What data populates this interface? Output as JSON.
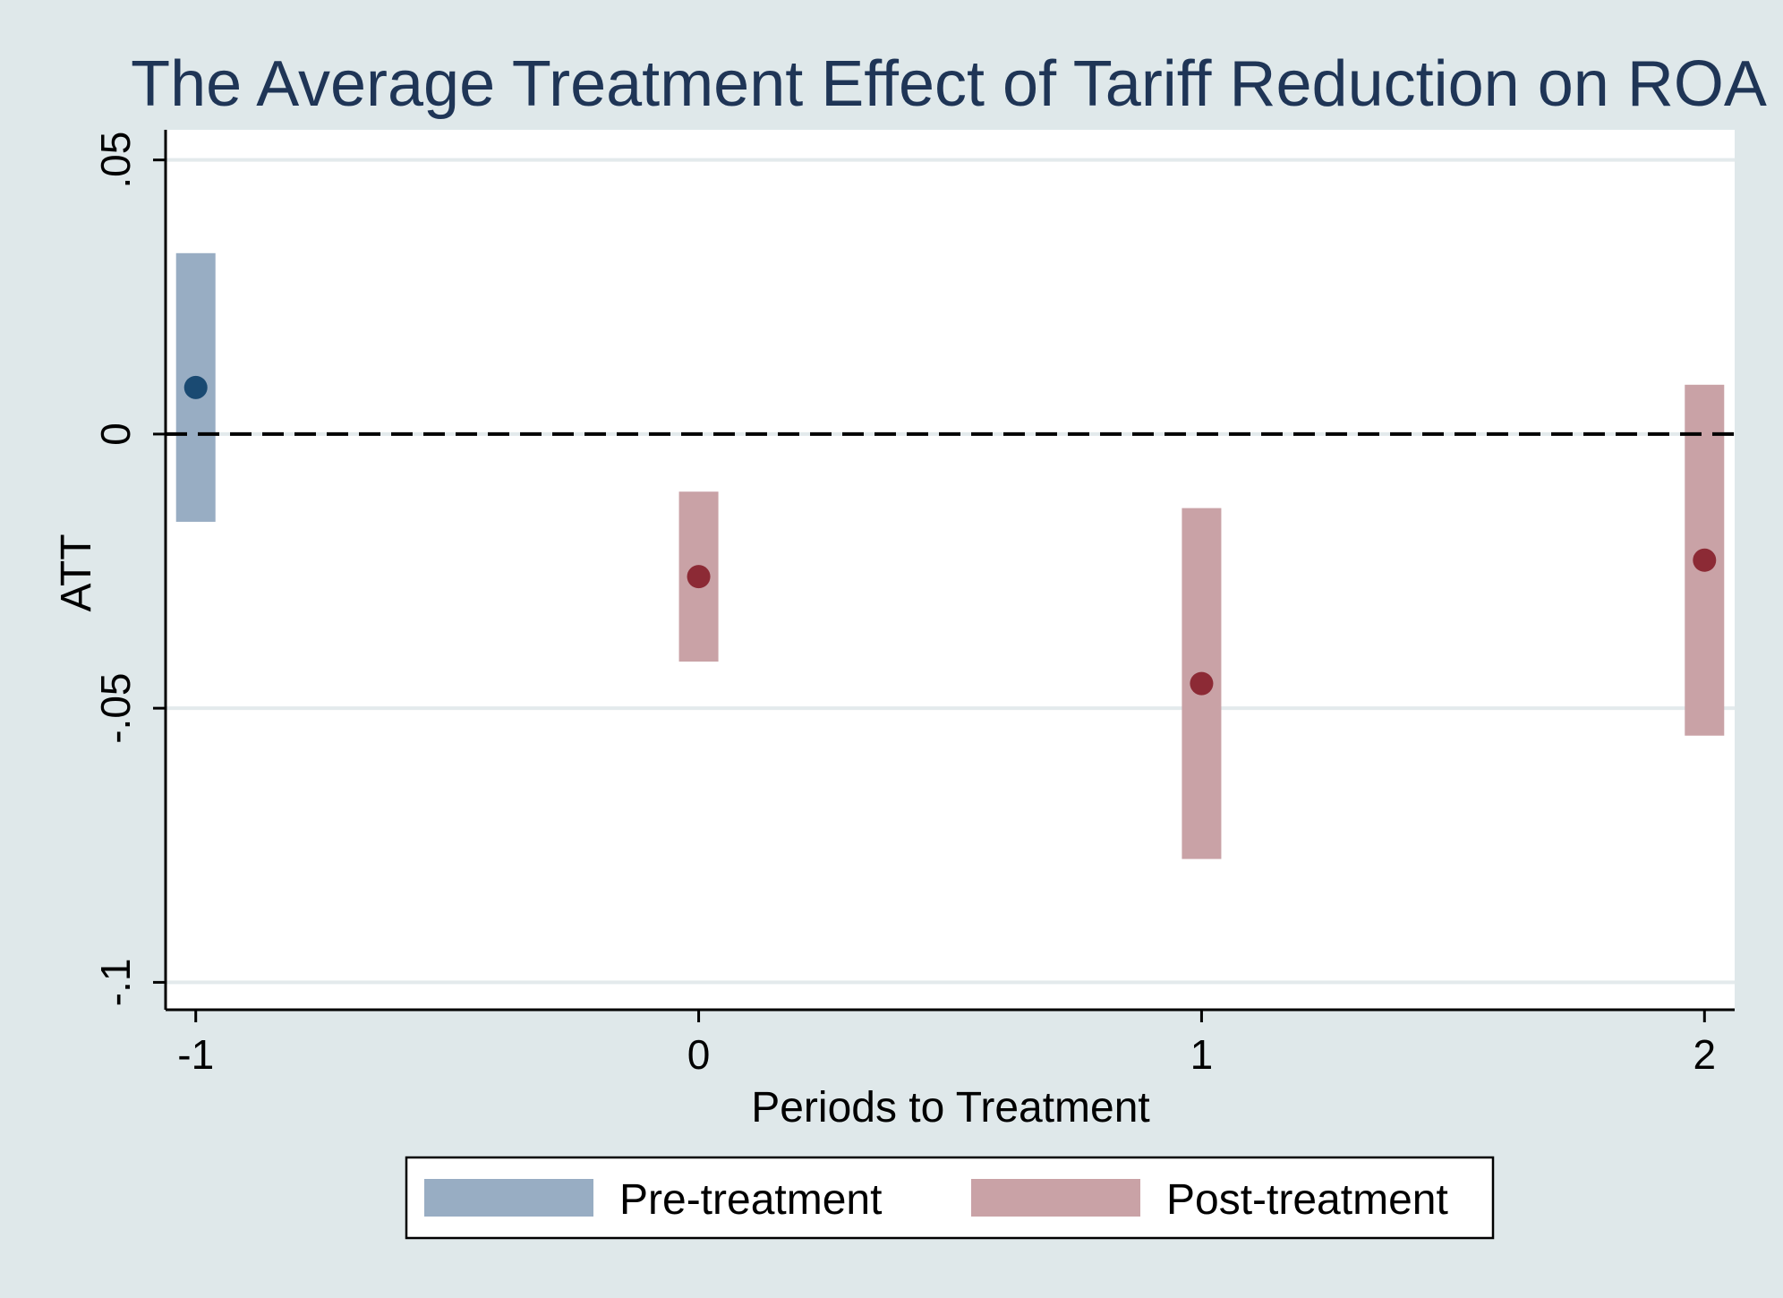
{
  "chart_data": {
    "type": "scatter",
    "title": "The Average Treatment Effect of Tariff Reduction on ROA",
    "xlabel": "Periods to Treatment",
    "ylabel": "ATT",
    "x_ticks": [
      -1,
      0,
      1,
      2
    ],
    "x_tick_labels": [
      "-1",
      "0",
      "1",
      "2"
    ],
    "y_ticks": [
      0.05,
      0,
      -0.05,
      -0.1
    ],
    "y_tick_labels": [
      ".05",
      "0",
      "-.05",
      "-.1"
    ],
    "xlim": [
      -1.06,
      2.06
    ],
    "ylim": [
      -0.105,
      0.0555
    ],
    "reference_line": {
      "y": 0,
      "style": "dashed",
      "color": "#000000"
    },
    "grid": true,
    "legend_position": "bottom-center",
    "series": [
      {
        "name": "Pre-treatment",
        "point_color": "#1a4a72",
        "band_color": "#98adc3",
        "points": [
          {
            "x": -1,
            "y": 0.0085,
            "ci_low": -0.016,
            "ci_high": 0.033
          }
        ]
      },
      {
        "name": "Post-treatment",
        "point_color": "#8c2a35",
        "band_color": "#c9a2a6",
        "points": [
          {
            "x": 0,
            "y": -0.026,
            "ci_low": -0.0415,
            "ci_high": -0.0105
          },
          {
            "x": 1,
            "y": -0.0455,
            "ci_low": -0.0775,
            "ci_high": -0.0135
          },
          {
            "x": 2,
            "y": -0.023,
            "ci_low": -0.055,
            "ci_high": 0.009
          }
        ]
      }
    ],
    "legend": [
      {
        "label": "Pre-treatment",
        "color": "#98adc3"
      },
      {
        "label": "Post-treatment",
        "color": "#c9a2a6"
      }
    ]
  }
}
